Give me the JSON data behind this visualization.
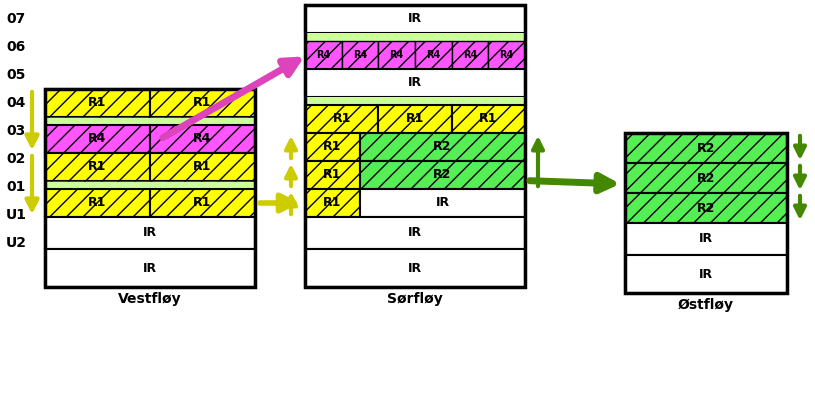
{
  "vest_title": "Vestfløy",
  "sor_title": "Sørfløy",
  "ost_title": "Østfløy",
  "yellow": "#FFFF00",
  "pink": "#FF55FF",
  "green": "#55EE55",
  "white": "#FFFFFF",
  "row_labels": [
    "07",
    "06",
    "05",
    "04",
    "03",
    "02",
    "01",
    "U1",
    "U2"
  ],
  "fig_w": 8.15,
  "fig_h": 3.95,
  "dpi": 100
}
